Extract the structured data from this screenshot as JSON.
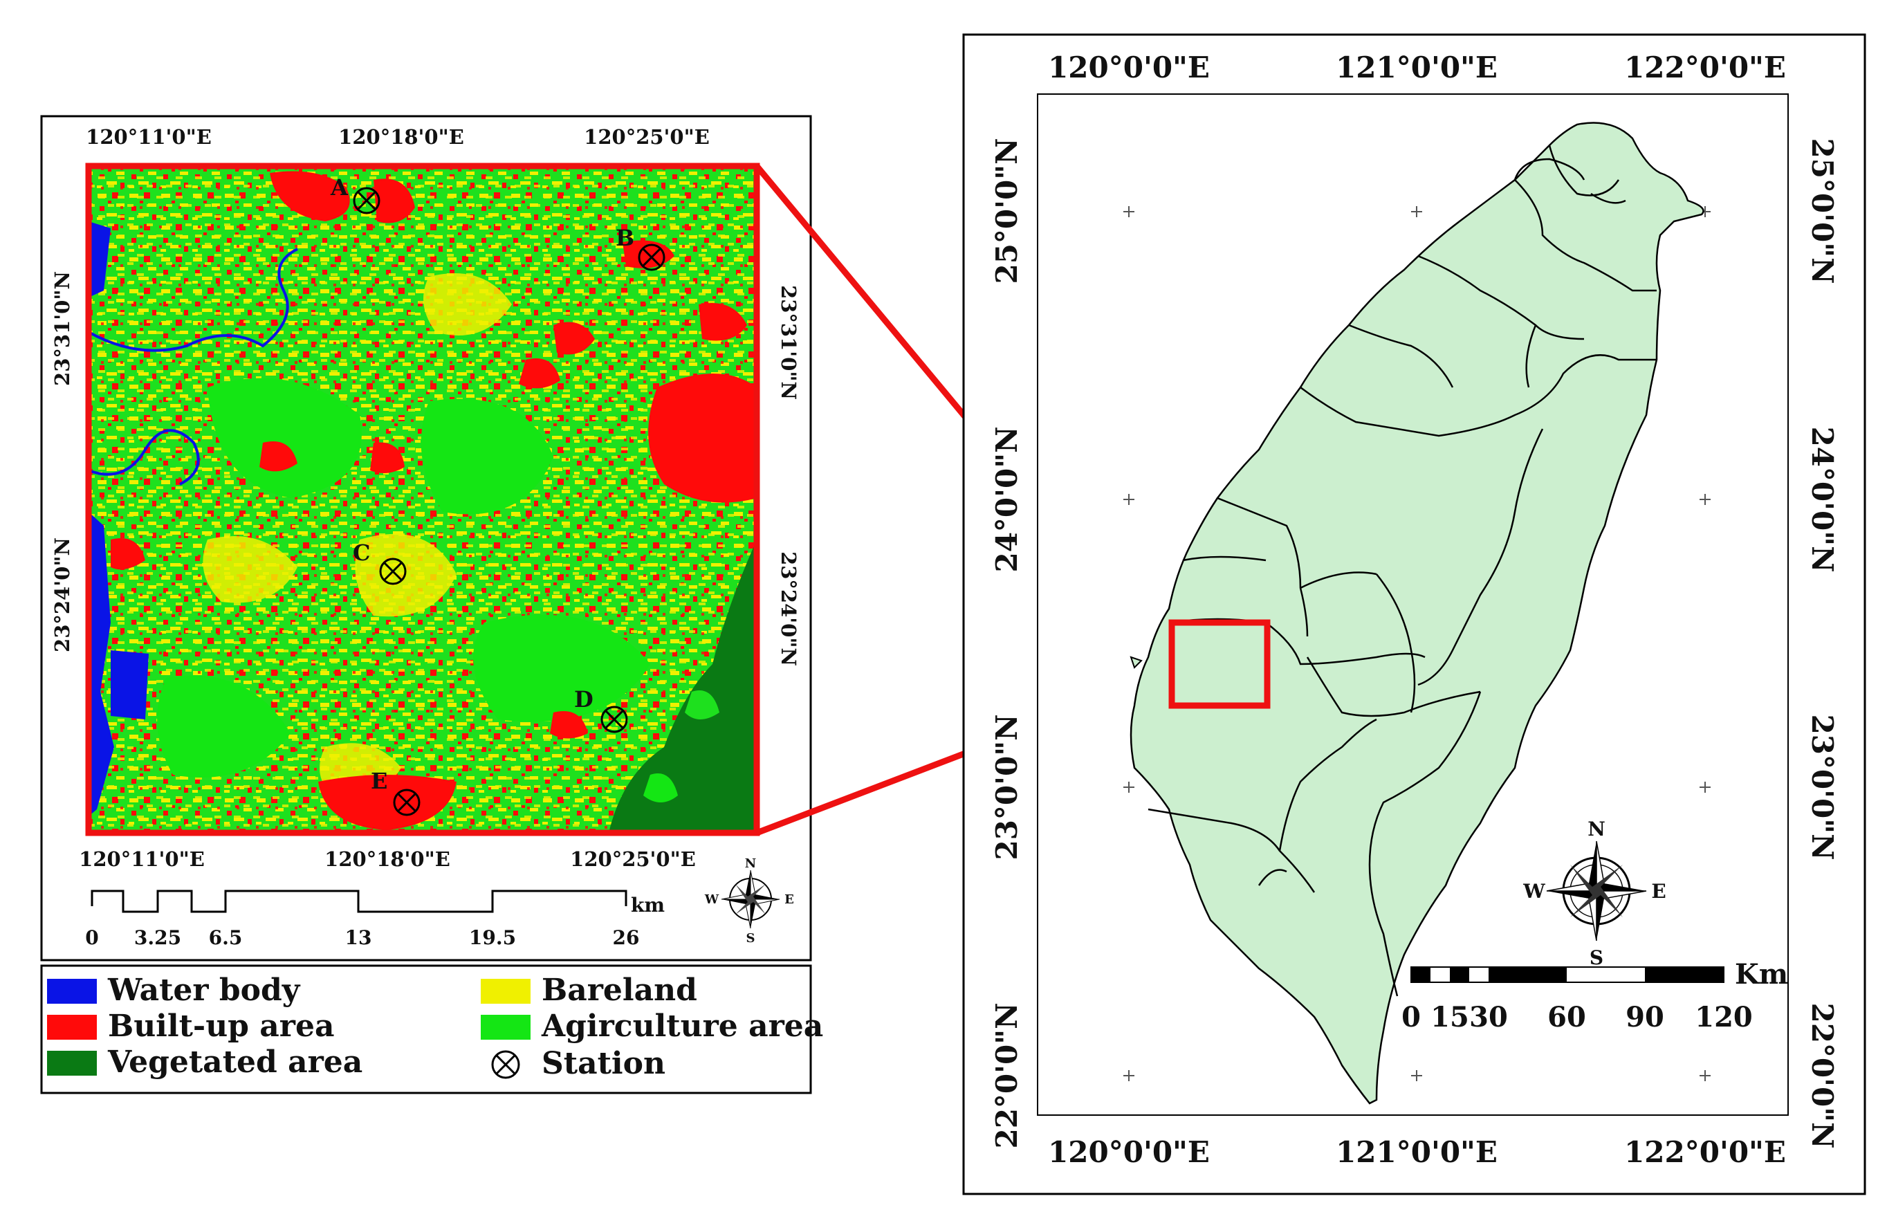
{
  "left_map": {
    "top_lon_labels": [
      "120°11'0\"E",
      "120°18'0\"E",
      "120°25'0\"E"
    ],
    "bottom_lon_labels": [
      "120°11'0\"E",
      "120°18'0\"E",
      "120°25'0\"E"
    ],
    "left_lat_labels": [
      "23°31'0\"N",
      "23°24'0\"N"
    ],
    "right_lat_labels": [
      "23°31'0\"N",
      "23°24'0\"N"
    ],
    "stations": [
      {
        "id": "A",
        "label": "A"
      },
      {
        "id": "B",
        "label": "B"
      },
      {
        "id": "C",
        "label": "C"
      },
      {
        "id": "D",
        "label": "D"
      },
      {
        "id": "E",
        "label": "E"
      }
    ],
    "scale_bar": {
      "unit": "km",
      "ticks": [
        "0",
        "3.25",
        "6.5",
        "13",
        "19.5",
        "26"
      ]
    },
    "compass": {
      "n": "N",
      "s": "S",
      "e": "E",
      "w": "W"
    }
  },
  "legend": {
    "items": [
      {
        "key": "water",
        "label": "Water body",
        "color": "#0a14e6"
      },
      {
        "key": "builtup",
        "label": "Built-up area",
        "color": "#ff0a0a"
      },
      {
        "key": "vegetated",
        "label": "Vegetated area",
        "color": "#0a7a14"
      },
      {
        "key": "bareland",
        "label": "Bareland",
        "color": "#f0f000"
      },
      {
        "key": "agriculture",
        "label": "Agirculture area",
        "color": "#14e614"
      },
      {
        "key": "station",
        "label": "Station",
        "symbol": "circled-x"
      }
    ]
  },
  "right_map": {
    "top_lon_labels": [
      "120°0'0\"E",
      "121°0'0\"E",
      "122°0'0\"E"
    ],
    "bottom_lon_labels": [
      "120°0'0\"E",
      "121°0'0\"E",
      "122°0'0\"E"
    ],
    "left_lat_labels": [
      "25°0'0\"N",
      "24°0'0\"N",
      "23°0'0\"N",
      "22°0'0\"N"
    ],
    "right_lat_labels": [
      "25°0'0\"N",
      "24°0'0\"N",
      "23°0'0\"N",
      "22°0'0\"N"
    ],
    "scale_bar": {
      "unit": "Km",
      "ticks": [
        "0",
        "15",
        "30",
        "60",
        "90",
        "120"
      ]
    },
    "compass": {
      "n": "N",
      "s": "S",
      "e": "E",
      "w": "W"
    },
    "land_color": "#ccefcf",
    "highlight_color": "#ee1111"
  }
}
